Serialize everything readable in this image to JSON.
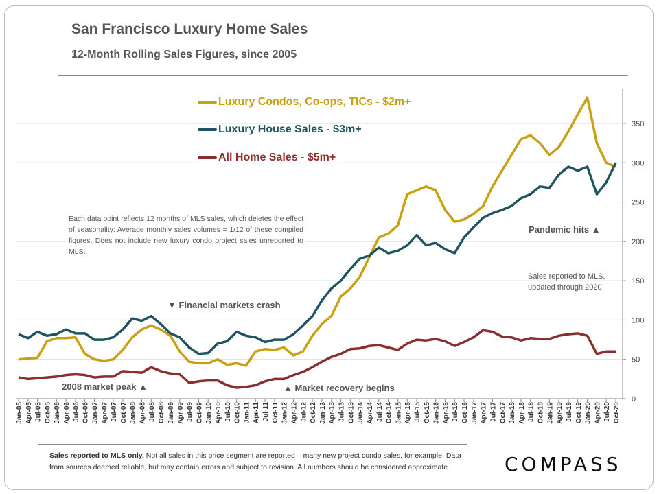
{
  "header": {
    "title": "San Francisco Luxury Home Sales",
    "subtitle": "12-Month Rolling Sales Figures, since 2005"
  },
  "annotations": {
    "note": "Each data point reflects 12 months of MLS sales, which deletes the effect of seasonality:  Average monthly sales volumes = 1/12 of these compiled figures. Does not include new luxury condo project sales unreported to MLS.",
    "crash": "▼ Financial markets crash",
    "peak": "2008 market peak ▲",
    "recovery": "▲ Market recovery begins",
    "pandemic": "Pandemic hits ▲",
    "mls_line1": "Sales reported to MLS,",
    "mls_line2": "updated through 2020"
  },
  "footer": {
    "bold": "Sales reported to MLS only.",
    "text": " Not all sales in this price segment are reported – many new project condo sales, for example. Data from sources deemed reliable, but may contain errors and subject to revision. All numbers should be considered approximate.",
    "logo": "COMPASS"
  },
  "chart_data": {
    "type": "line",
    "title": "San Francisco Luxury Home Sales",
    "subtitle": "12-Month Rolling Sales Figures, since 2005",
    "xlabel": "",
    "ylabel": "",
    "ylim": [
      0,
      390
    ],
    "yticks": [
      0,
      50,
      100,
      150,
      200,
      250,
      300,
      350
    ],
    "y_axis_side": "right",
    "grid": true,
    "legend": "top-center",
    "x": [
      "Jan-05",
      "Apr-05",
      "Jul-05",
      "Oct-05",
      "Jan-06",
      "Apr-06",
      "Jul-06",
      "Oct-06",
      "Jan-07",
      "Apr-07",
      "Jul-07",
      "Oct-07",
      "Jan-08",
      "Apr-08",
      "Jul-08",
      "Oct-08",
      "Jan-09",
      "Apr-09",
      "Jul-09",
      "Oct-09",
      "Jan-10",
      "Apr-10",
      "Jul-10",
      "Oct-10",
      "Jan-11",
      "Apr-11",
      "Jul-11",
      "Oct-11",
      "Jan-12",
      "Apr-12",
      "Jul-12",
      "Oct-12",
      "Jan-13",
      "Apr-13",
      "Jul-13",
      "Oct-13",
      "Jan-14",
      "Apr-14",
      "Jul-14",
      "Oct-14",
      "Jan-15",
      "Apr-15",
      "Jul-15",
      "Oct-15",
      "Jan-16",
      "Apr-16",
      "Jul-16",
      "Oct-16",
      "Jan-17",
      "Apr-17",
      "Jul-17",
      "Oct-17",
      "Jan-18",
      "Apr-18",
      "Jul-18",
      "Oct-18",
      "Jan-19",
      "Apr-19",
      "Jul-19",
      "Oct-19",
      "Jan-20",
      "Apr-20",
      "Jul-20",
      "Oct-20"
    ],
    "series": [
      {
        "name": "Luxury Condos, Co-ops, TICs - $2m+",
        "color": "#c9a012",
        "values": [
          50,
          51,
          52,
          73,
          77,
          77,
          78,
          57,
          50,
          48,
          50,
          62,
          78,
          88,
          93,
          88,
          80,
          60,
          47,
          45,
          45,
          50,
          43,
          45,
          42,
          60,
          63,
          62,
          65,
          55,
          60,
          80,
          95,
          105,
          130,
          140,
          155,
          180,
          205,
          210,
          220,
          260,
          265,
          270,
          265,
          240,
          225,
          228,
          235,
          245,
          270,
          290,
          310,
          330,
          335,
          325,
          310,
          320,
          340,
          362,
          383,
          325,
          300,
          295
        ]
      },
      {
        "name": "Luxury House Sales - $3m+",
        "color": "#1f5561",
        "values": [
          82,
          77,
          85,
          80,
          82,
          88,
          83,
          83,
          75,
          75,
          78,
          88,
          102,
          99,
          105,
          95,
          83,
          78,
          65,
          57,
          58,
          70,
          73,
          85,
          80,
          78,
          72,
          75,
          75,
          82,
          93,
          105,
          125,
          140,
          150,
          165,
          178,
          182,
          192,
          185,
          188,
          195,
          208,
          195,
          198,
          190,
          185,
          205,
          218,
          230,
          236,
          240,
          245,
          255,
          260,
          270,
          268,
          285,
          295,
          290,
          295,
          260,
          275,
          300
        ]
      },
      {
        "name": "All Home Sales - $5m+",
        "color": "#8b2e2e",
        "values": [
          27,
          25,
          26,
          27,
          28,
          30,
          31,
          30,
          27,
          28,
          28,
          35,
          34,
          33,
          40,
          35,
          32,
          31,
          20,
          22,
          23,
          23,
          17,
          14,
          15,
          17,
          22,
          25,
          25,
          30,
          34,
          40,
          47,
          53,
          57,
          63,
          64,
          67,
          68,
          65,
          62,
          70,
          75,
          74,
          76,
          73,
          67,
          72,
          78,
          87,
          85,
          79,
          78,
          74,
          77,
          76,
          76,
          80,
          82,
          83,
          80,
          57,
          60,
          60
        ]
      }
    ]
  }
}
